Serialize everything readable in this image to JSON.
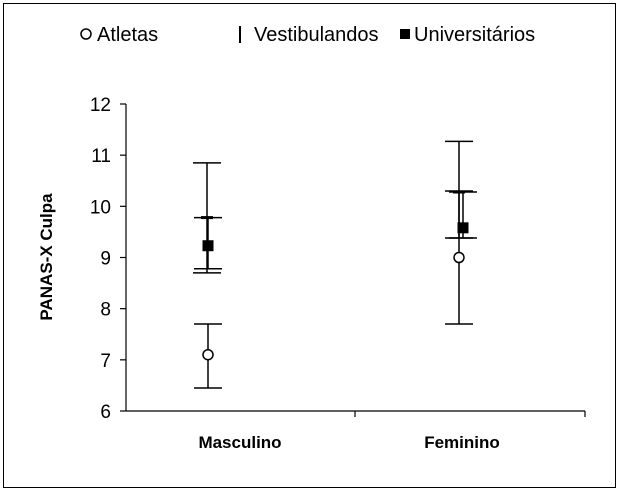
{
  "chart_data": {
    "type": "scatter",
    "title": "",
    "xlabel": "",
    "ylabel": "PANAS-X Culpa",
    "categories": [
      "Masculino",
      "Feminino"
    ],
    "ylim": [
      6,
      12
    ],
    "yticks": [
      6,
      7,
      8,
      9,
      10,
      11,
      12
    ],
    "grid": false,
    "legend_position": "top",
    "series": [
      {
        "name": "Atletas",
        "marker": "open-circle",
        "values": [
          7.1,
          9.0
        ],
        "errors": [
          {
            "low": 6.45,
            "high": 7.7
          },
          {
            "low": 7.7,
            "high": 10.3
          }
        ]
      },
      {
        "name": "Vestibulandos",
        "marker": "dash",
        "values": [
          9.78,
          10.28
        ],
        "errors": [
          {
            "low": 8.7,
            "high": 10.85
          },
          {
            "low": 9.38,
            "high": 11.27
          }
        ]
      },
      {
        "name": "Universitários",
        "marker": "filled-square",
        "values": [
          9.23,
          9.58
        ],
        "errors": [
          {
            "low": 8.78,
            "high": 9.78
          },
          {
            "low": 9.38,
            "high": 10.28
          }
        ]
      }
    ],
    "colors": {
      "marks": "#000000",
      "background": "#ffffff"
    }
  }
}
